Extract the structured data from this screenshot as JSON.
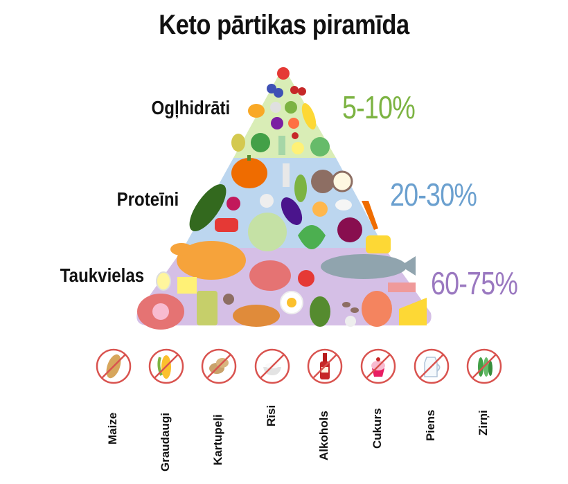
{
  "title": "Keto pārtikas piramīda",
  "levels": [
    {
      "label": "Ogļhidrāti",
      "percent": "5-10%",
      "color": "#d9edb6",
      "pct_color": "#7cb342"
    },
    {
      "label": "Proteīni",
      "percent": "20-30%",
      "color": "#bcd6ef",
      "pct_color": "#6ba0cf"
    },
    {
      "label": "Taukvielas",
      "percent": "60-75%",
      "color": "#d5bfe6",
      "pct_color": "#9a78c0"
    }
  ],
  "forbidden": [
    {
      "label": "Maize",
      "icon": "bread-icon"
    },
    {
      "label": "Graudaugi",
      "icon": "corn-icon"
    },
    {
      "label": "Kartupeļi",
      "icon": "potato-icon"
    },
    {
      "label": "Rīsi",
      "icon": "rice-icon"
    },
    {
      "label": "Alkohols",
      "icon": "wine-bottle-icon"
    },
    {
      "label": "Cukurs",
      "icon": "cupcake-icon"
    },
    {
      "label": "Piens",
      "icon": "milk-jug-icon"
    },
    {
      "label": "Zirņi",
      "icon": "peas-icon"
    }
  ],
  "ban_color": "#d9534f"
}
